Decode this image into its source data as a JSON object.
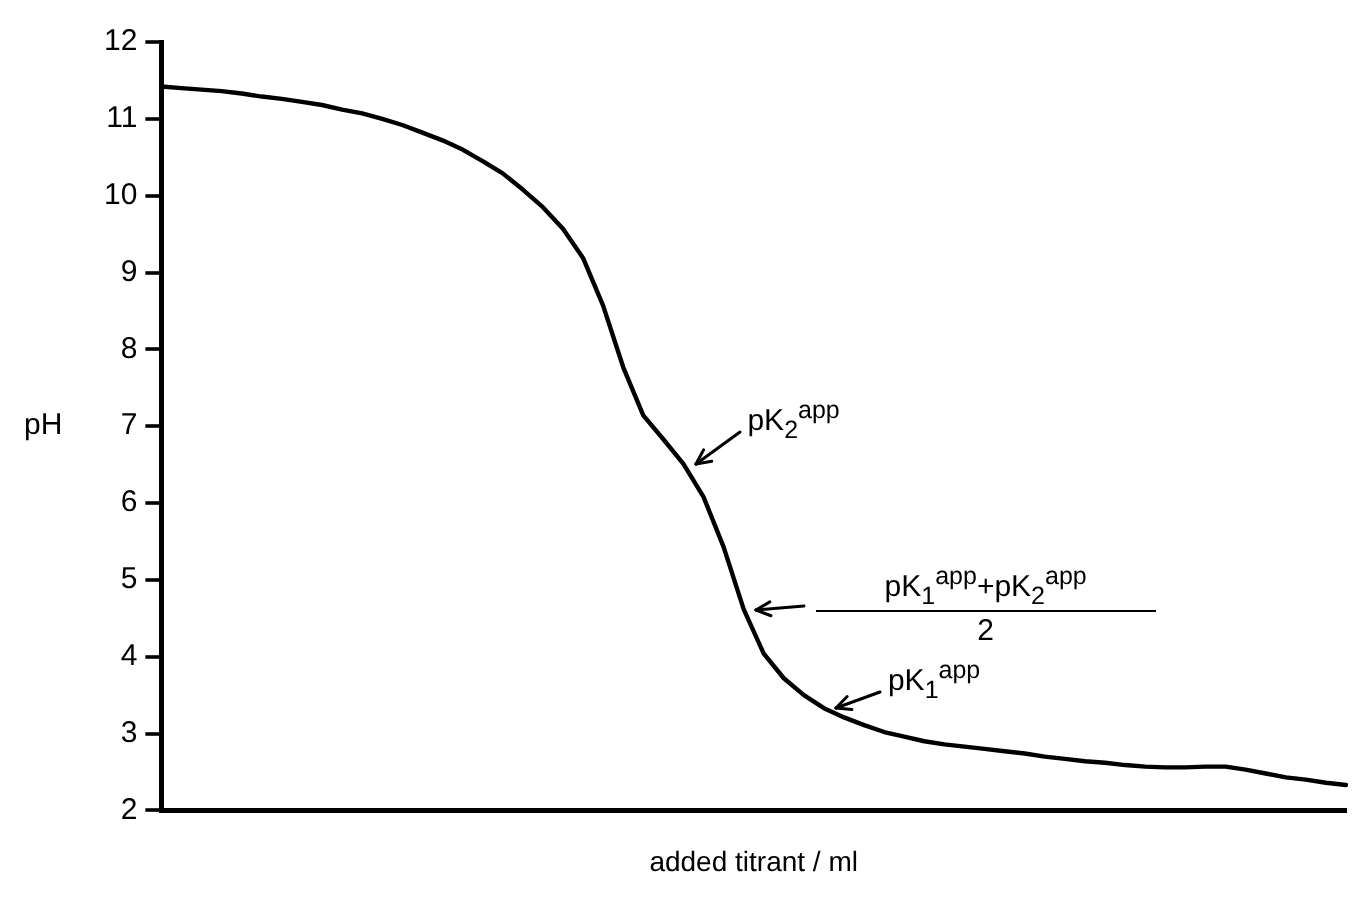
{
  "chart_data": {
    "type": "line",
    "xlabel": "added titrant / ml",
    "ylabel": "pH",
    "categories": [
      null,
      null,
      null,
      null,
      null,
      null,
      null,
      null,
      null,
      null,
      null,
      null,
      null,
      null,
      null,
      null,
      null,
      null,
      null,
      null,
      null,
      null,
      null,
      null,
      null,
      null,
      null,
      null,
      null,
      null,
      null,
      null,
      null,
      null,
      null,
      null,
      null,
      null,
      null,
      null,
      null,
      null,
      null,
      null,
      null,
      null,
      null,
      null,
      null,
      null,
      null,
      null,
      null,
      null,
      null,
      null,
      null,
      null,
      null,
      null
    ],
    "series": [
      {
        "color": "#000000",
        "values": [
          11.42,
          11.4,
          11.38,
          11.36,
          11.33,
          11.29,
          11.26,
          11.22,
          11.18,
          11.12,
          11.07,
          11.0,
          10.92,
          10.82,
          10.72,
          10.6,
          10.45,
          10.29,
          10.08,
          9.85,
          9.57,
          9.19,
          8.57,
          7.77,
          7.14,
          6.83,
          6.51,
          6.08,
          5.43,
          4.62,
          4.04,
          3.72,
          3.5,
          3.33,
          3.21,
          3.11,
          3.02,
          2.96,
          2.9,
          2.86,
          2.83,
          2.8,
          2.77,
          2.74,
          2.7,
          2.67,
          2.64,
          2.62,
          2.59,
          2.57,
          2.56,
          2.56,
          2.57,
          2.57,
          2.53,
          2.48,
          2.43,
          2.4,
          2.36,
          2.33
        ]
      }
    ],
    "ylim": [
      2,
      12
    ],
    "yticks": [
      2,
      3,
      4,
      5,
      6,
      7,
      8,
      9,
      10,
      11,
      12
    ],
    "tick_labels": "y",
    "marker": "none",
    "line_style": "solid",
    "annotations": [
      "pK$_{2}$$^{app}$",
      "pK$_{1}$$^{app}$+pK$_{2}$$^{app}$",
      "2",
      "pK$_{1}$$^{app}$"
    ]
  }
}
